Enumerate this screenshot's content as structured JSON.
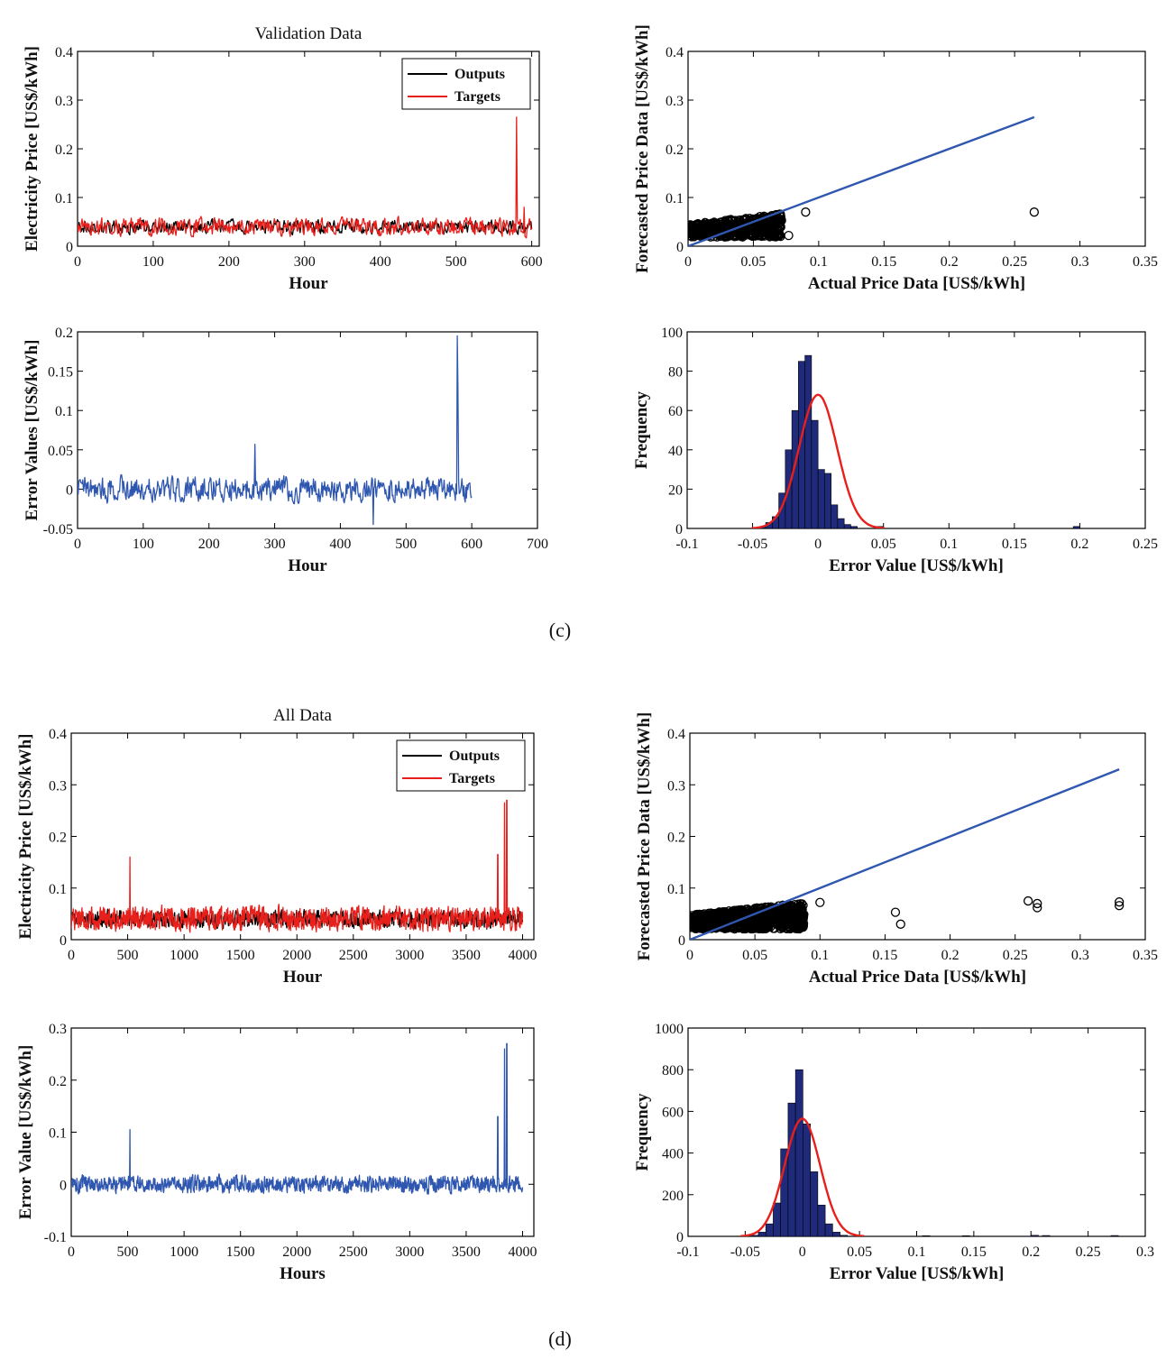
{
  "figure_captions": [
    "(c)",
    "(d)"
  ],
  "chart_data": [
    {
      "id": "c_timeseries",
      "type": "line",
      "title": "Validation Data",
      "xlabel": "Hour",
      "ylabel": "Electricity Price [US$/kWh]",
      "xlim": [
        0,
        610
      ],
      "ylim": [
        0,
        0.4
      ],
      "xticks": [
        0,
        100,
        200,
        300,
        400,
        500,
        600
      ],
      "yticks": [
        0,
        0.1,
        0.2,
        0.3,
        0.4
      ],
      "xtick_labels": [
        "0",
        "100",
        "200",
        "300",
        "400",
        "500",
        "600"
      ],
      "ytick_labels": [
        "0",
        "0.1",
        "0.2",
        "0.3",
        "0.4"
      ],
      "legend_position": "top-right",
      "series": [
        {
          "name": "Outputs",
          "color": "#000000",
          "n": 600,
          "base": 0.04,
          "noise": 0.012,
          "spikes": []
        },
        {
          "name": "Targets",
          "color": "#e8201c",
          "n": 600,
          "base": 0.04,
          "noise": 0.016,
          "spikes": [
            [
              580,
              0.265
            ],
            [
              590,
              0.08
            ]
          ]
        }
      ]
    },
    {
      "id": "c_scatter",
      "type": "scatter",
      "xlabel": "Actual Price Data  [US$/kWh]",
      "ylabel": "Forecasted Price Data  [US$/kWh]",
      "xlim": [
        0,
        0.35
      ],
      "ylim": [
        0,
        0.4
      ],
      "xticks": [
        0,
        0.05,
        0.1,
        0.15,
        0.2,
        0.25,
        0.3,
        0.35
      ],
      "yticks": [
        0,
        0.1,
        0.2,
        0.3,
        0.4
      ],
      "xtick_labels": [
        "0",
        "0.05",
        "0.1",
        "0.15",
        "0.2",
        "0.25",
        "0.3",
        "0.35"
      ],
      "ytick_labels": [
        "0",
        "0.1",
        "0.2",
        "0.3",
        "0.4"
      ],
      "cloud": {
        "n": 500,
        "xmax": 0.072,
        "ymin": 0.018,
        "ymax": 0.068
      },
      "outliers": [
        [
          0.09,
          0.07
        ],
        [
          0.077,
          0.022
        ],
        [
          0.265,
          0.07
        ]
      ],
      "fit_line": {
        "from": [
          0,
          0
        ],
        "to": [
          0.265,
          0.265
        ],
        "color": "#2f57b0"
      }
    },
    {
      "id": "c_error",
      "type": "line",
      "xlabel": "Hour",
      "ylabel": "Error Values  [US$/kWh]",
      "xlim": [
        0,
        700
      ],
      "ylim": [
        -0.05,
        0.2
      ],
      "xticks": [
        0,
        100,
        200,
        300,
        400,
        500,
        600,
        700
      ],
      "yticks": [
        -0.05,
        0,
        0.05,
        0.1,
        0.15,
        0.2
      ],
      "xtick_labels": [
        "0",
        "100",
        "200",
        "300",
        "400",
        "500",
        "600",
        "700"
      ],
      "ytick_labels": [
        "-0.05",
        "0",
        "0.05",
        "0.1",
        "0.15",
        "0.2"
      ],
      "series": [
        {
          "name": "Error",
          "color": "#2f57b0",
          "n": 600,
          "base": 0,
          "noise": 0.014,
          "spikes": [
            [
              270,
              0.057
            ],
            [
              450,
              -0.045
            ],
            [
              578,
              0.195
            ],
            [
              579,
              0.13
            ]
          ]
        }
      ]
    },
    {
      "id": "c_hist",
      "type": "bar",
      "xlabel": "Error Value  [US$/kWh]",
      "ylabel": "Frequency",
      "xlim": [
        -0.1,
        0.25
      ],
      "ylim": [
        0,
        100
      ],
      "xticks": [
        -0.1,
        -0.05,
        0,
        0.05,
        0.1,
        0.15,
        0.2,
        0.25
      ],
      "yticks": [
        0,
        20,
        40,
        60,
        80,
        100
      ],
      "xtick_labels": [
        "-0.1",
        "-0.05",
        "0",
        "0.05",
        "0.1",
        "0.15",
        "0.2",
        "0.25"
      ],
      "ytick_labels": [
        "0",
        "20",
        "40",
        "60",
        "80",
        "100"
      ],
      "bin_start": -0.045,
      "bin_width": 0.005,
      "values": [
        1,
        3,
        6,
        18,
        40,
        60,
        85,
        88,
        55,
        30,
        28,
        12,
        5,
        2,
        1,
        0,
        0,
        0,
        1
      ],
      "extra_bars": [
        [
          0.195,
          1
        ]
      ],
      "normal_fit": {
        "mean": 0,
        "sd": 0.0145,
        "peak": 68,
        "color": "#e8201c"
      }
    },
    {
      "id": "d_timeseries",
      "type": "line",
      "title": "All Data",
      "xlabel": "Hour",
      "ylabel": "Electricity Price [US$/kWh]",
      "xlim": [
        0,
        4100
      ],
      "ylim": [
        0,
        0.4
      ],
      "xticks": [
        0,
        500,
        1000,
        1500,
        2000,
        2500,
        3000,
        3500,
        4000
      ],
      "yticks": [
        0,
        0.1,
        0.2,
        0.3,
        0.4
      ],
      "xtick_labels": [
        "0",
        "500",
        "1000",
        "1500",
        "2000",
        "2500",
        "3000",
        "3500",
        "4000"
      ],
      "ytick_labels": [
        "0",
        "0.1",
        "0.2",
        "0.3",
        "0.4"
      ],
      "legend_position": "top-right",
      "series": [
        {
          "name": "Outputs",
          "color": "#000000",
          "n": 1300,
          "span": 4000,
          "base": 0.04,
          "noise": 0.014,
          "spikes": []
        },
        {
          "name": "Targets",
          "color": "#e8201c",
          "n": 1300,
          "span": 4000,
          "base": 0.04,
          "noise": 0.02,
          "spikes": [
            [
              520,
              0.16
            ],
            [
              3780,
              0.165
            ],
            [
              3840,
              0.265
            ],
            [
              3860,
              0.27
            ]
          ]
        }
      ]
    },
    {
      "id": "d_scatter",
      "type": "scatter",
      "xlabel": "Actual Price Data [US$/kWh]",
      "ylabel": "Forecasted Price Data [US$/kWh]",
      "xlim": [
        0,
        0.35
      ],
      "ylim": [
        0,
        0.4
      ],
      "xticks": [
        0,
        0.05,
        0.1,
        0.15,
        0.2,
        0.25,
        0.3,
        0.35
      ],
      "yticks": [
        0,
        0.1,
        0.2,
        0.3,
        0.4
      ],
      "xtick_labels": [
        "0",
        "0.05",
        "0.1",
        "0.15",
        "0.2",
        "0.25",
        "0.3",
        "0.35"
      ],
      "ytick_labels": [
        "0",
        "0.1",
        "0.2",
        "0.3",
        "0.4"
      ],
      "cloud": {
        "n": 900,
        "xmax": 0.088,
        "ymin": 0.02,
        "ymax": 0.072
      },
      "outliers": [
        [
          0.1,
          0.072
        ],
        [
          0.158,
          0.053
        ],
        [
          0.162,
          0.03
        ],
        [
          0.26,
          0.075
        ],
        [
          0.267,
          0.07
        ],
        [
          0.267,
          0.062
        ],
        [
          0.33,
          0.073
        ],
        [
          0.33,
          0.066
        ]
      ],
      "fit_line": {
        "from": [
          0,
          0
        ],
        "to": [
          0.33,
          0.33
        ],
        "color": "#2f57b0"
      }
    },
    {
      "id": "d_error",
      "type": "line",
      "xlabel": "Hours",
      "ylabel": "Error Value [US$/kWh]",
      "xlim": [
        0,
        4100
      ],
      "ylim": [
        -0.1,
        0.3
      ],
      "xticks": [
        0,
        500,
        1000,
        1500,
        2000,
        2500,
        3000,
        3500,
        4000
      ],
      "yticks": [
        -0.1,
        0,
        0.1,
        0.2,
        0.3
      ],
      "xtick_labels": [
        "0",
        "500",
        "1000",
        "1500",
        "2000",
        "2500",
        "3000",
        "3500",
        "4000"
      ],
      "ytick_labels": [
        "-0.1",
        "0",
        "0.1",
        "0.2",
        "0.3"
      ],
      "series": [
        {
          "name": "Error",
          "color": "#2f57b0",
          "n": 1300,
          "span": 4000,
          "base": 0,
          "noise": 0.014,
          "spikes": [
            [
              520,
              0.105
            ],
            [
              3780,
              0.13
            ],
            [
              3840,
              0.26
            ],
            [
              3860,
              0.27
            ]
          ]
        }
      ]
    },
    {
      "id": "d_hist",
      "type": "bar",
      "xlabel": "Error Value [US$/kWh]",
      "ylabel": "Frequency",
      "xlim": [
        -0.1,
        0.3
      ],
      "ylim": [
        0,
        1000
      ],
      "xticks": [
        -0.1,
        -0.05,
        0,
        0.05,
        0.1,
        0.15,
        0.2,
        0.25,
        0.3
      ],
      "yticks": [
        0,
        200,
        400,
        600,
        800,
        1000
      ],
      "xtick_labels": [
        "-0.1",
        "-0.05",
        "0",
        "0.05",
        "0.1",
        "0.15",
        "0.2",
        "0.25",
        "0.3"
      ],
      "ytick_labels": [
        "0",
        "200",
        "400",
        "600",
        "800",
        "1000"
      ],
      "bin_start": -0.045,
      "bin_width": 0.0065,
      "values": [
        5,
        20,
        60,
        160,
        420,
        640,
        800,
        540,
        310,
        150,
        60,
        20,
        5
      ],
      "extra_bars": [
        [
          0.105,
          3
        ],
        [
          0.14,
          3
        ],
        [
          0.2,
          5
        ],
        [
          0.21,
          4
        ],
        [
          0.27,
          4
        ]
      ],
      "normal_fit": {
        "mean": 0,
        "sd": 0.0155,
        "peak": 565,
        "color": "#e8201c"
      }
    }
  ]
}
